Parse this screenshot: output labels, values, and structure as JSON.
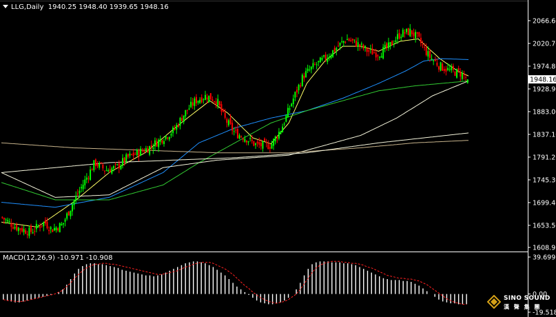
{
  "header": {
    "symbol": "LLG,Daily",
    "ohlc": "1940.25 1948.40 1939.65 1948.16"
  },
  "price_axis": {
    "ticks": [
      "2066.60",
      "2020.70",
      "1974.80",
      "1928.90",
      "1883.00",
      "1837.10",
      "1791.20",
      "1745.30",
      "1699.40",
      "1653.50",
      "1608.95"
    ],
    "current": "1948.16"
  },
  "macd": {
    "label": "MACD(12,26,9) -10.971 -10.908",
    "axis_top": "39.699",
    "axis_zero": "0.00",
    "axis_bottom": "-19.518"
  },
  "logo": {
    "name": "SINO SOUND",
    "sub": "漢 聲 集 團"
  },
  "colors": {
    "background": "#000000",
    "bull_candle": "#00ff00",
    "bear_candle": "#ff0000",
    "ma_fast": "#ffff66",
    "ma_mid": "#1e90ff",
    "ma_slow_green": "#32cd32",
    "ma_long_white": "#f5f5dc",
    "ma_longest_tan": "#c8b48c",
    "macd_hist": "#ffffff",
    "macd_signal": "#ff2020",
    "current_price_box": "#ffffff"
  },
  "chart_data": [
    {
      "type": "candlestick",
      "title": "LLG,Daily",
      "symbol": "LLG",
      "timeframe": "Daily",
      "last_bar": {
        "open": 1940.25,
        "high": 1948.4,
        "low": 1939.65,
        "close": 1948.16
      },
      "ylim": [
        1608.95,
        2080
      ],
      "yticks": [
        2066.6,
        2020.7,
        1974.8,
        1928.9,
        1883.0,
        1837.1,
        1791.2,
        1745.3,
        1699.4,
        1653.5,
        1608.95
      ],
      "current_price": 1948.16,
      "grid": false,
      "close_path": [
        [
          0,
          1670
        ],
        [
          8,
          1650
        ],
        [
          16,
          1640
        ],
        [
          24,
          1660
        ],
        [
          28,
          1645
        ],
        [
          34,
          1655
        ],
        [
          40,
          1700
        ],
        [
          46,
          1740
        ],
        [
          52,
          1780
        ],
        [
          58,
          1765
        ],
        [
          64,
          1770
        ],
        [
          70,
          1790
        ],
        [
          76,
          1800
        ],
        [
          82,
          1810
        ],
        [
          90,
          1830
        ],
        [
          96,
          1845
        ],
        [
          102,
          1880
        ],
        [
          108,
          1905
        ],
        [
          114,
          1915
        ],
        [
          120,
          1905
        ],
        [
          124,
          1870
        ],
        [
          130,
          1840
        ],
        [
          136,
          1830
        ],
        [
          142,
          1815
        ],
        [
          150,
          1815
        ],
        [
          156,
          1850
        ],
        [
          162,
          1905
        ],
        [
          168,
          1955
        ],
        [
          174,
          1975
        ],
        [
          180,
          1990
        ],
        [
          186,
          2010
        ],
        [
          192,
          2030
        ],
        [
          198,
          2020
        ],
        [
          204,
          2005
        ],
        [
          210,
          2000
        ],
        [
          216,
          2015
        ],
        [
          222,
          2040
        ],
        [
          228,
          2045
        ],
        [
          232,
          2030
        ],
        [
          238,
          1995
        ],
        [
          244,
          1975
        ],
        [
          250,
          1965
        ],
        [
          256,
          1960
        ],
        [
          260,
          1948.16
        ]
      ],
      "x_range": [
        0,
        260
      ],
      "moving_averages": [
        {
          "color": "#ffff66",
          "points": [
            [
              0,
              1660
            ],
            [
              20,
              1650
            ],
            [
              40,
              1700
            ],
            [
              60,
              1760
            ],
            [
              80,
              1800
            ],
            [
              100,
              1860
            ],
            [
              116,
              1905
            ],
            [
              126,
              1880
            ],
            [
              140,
              1830
            ],
            [
              150,
              1818
            ],
            [
              160,
              1860
            ],
            [
              170,
              1940
            ],
            [
              180,
              1985
            ],
            [
              190,
              2015
            ],
            [
              200,
              2015
            ],
            [
              210,
              2005
            ],
            [
              222,
              2025
            ],
            [
              232,
              2030
            ],
            [
              244,
              1990
            ],
            [
              254,
              1965
            ],
            [
              260,
              1955
            ]
          ]
        },
        {
          "color": "#1e90ff",
          "points": [
            [
              0,
              1700
            ],
            [
              30,
              1690
            ],
            [
              60,
              1710
            ],
            [
              90,
              1760
            ],
            [
              110,
              1820
            ],
            [
              130,
              1850
            ],
            [
              150,
              1870
            ],
            [
              170,
              1885
            ],
            [
              190,
              1910
            ],
            [
              210,
              1940
            ],
            [
              225,
              1965
            ],
            [
              235,
              1985
            ],
            [
              245,
              1990
            ],
            [
              260,
              1988
            ]
          ]
        },
        {
          "color": "#32cd32",
          "points": [
            [
              0,
              1740
            ],
            [
              30,
              1705
            ],
            [
              60,
              1705
            ],
            [
              90,
              1735
            ],
            [
              110,
              1780
            ],
            [
              130,
              1820
            ],
            [
              150,
              1860
            ],
            [
              170,
              1885
            ],
            [
              190,
              1905
            ],
            [
              210,
              1925
            ],
            [
              230,
              1935
            ],
            [
              245,
              1940
            ],
            [
              260,
              1945
            ]
          ]
        },
        {
          "color": "#f5f5dc",
          "points": [
            [
              0,
              1760
            ],
            [
              30,
              1710
            ],
            [
              60,
              1715
            ],
            [
              90,
              1770
            ],
            [
              120,
              1785
            ],
            [
              140,
              1790
            ],
            [
              160,
              1795
            ],
            [
              180,
              1815
            ],
            [
              200,
              1835
            ],
            [
              220,
              1870
            ],
            [
              240,
              1915
            ],
            [
              260,
              1945
            ]
          ]
        },
        {
          "color": "#c8b48c",
          "points": [
            [
              0,
              1820
            ],
            [
              40,
              1810
            ],
            [
              80,
              1805
            ],
            [
              120,
              1800
            ],
            [
              160,
              1800
            ],
            [
              200,
              1810
            ],
            [
              230,
              1820
            ],
            [
              260,
              1825
            ]
          ]
        }
      ],
      "long_white_tail": [
        [
          0,
          1760
        ],
        [
          60,
          1780
        ],
        [
          130,
          1790
        ],
        [
          170,
          1800
        ],
        [
          210,
          1820
        ],
        [
          260,
          1840
        ]
      ]
    },
    {
      "type": "bar",
      "title": "MACD(12,26,9)",
      "macd_value": -10.971,
      "signal_value": -10.908,
      "ylim": [
        -19.518,
        39.699
      ],
      "yticks": [
        39.699,
        0.0,
        -19.518
      ],
      "histogram": [
        -6,
        -7,
        -8,
        -9,
        -9,
        -8,
        -7,
        -6,
        -5,
        -4,
        -3,
        -2,
        -1,
        0,
        2,
        5,
        10,
        16,
        22,
        27,
        30,
        32,
        33,
        33,
        32,
        32,
        31,
        30,
        29,
        28,
        26,
        25,
        24,
        23,
        22,
        21,
        20,
        20,
        19,
        20,
        21,
        23,
        25,
        27,
        29,
        31,
        33,
        34,
        35,
        35,
        34,
        33,
        31,
        29,
        26,
        23,
        20,
        16,
        12,
        8,
        5,
        2,
        -1,
        -4,
        -7,
        -9,
        -10,
        -11,
        -11,
        -10,
        -9,
        -7,
        -4,
        0,
        5,
        12,
        20,
        27,
        32,
        34,
        35,
        35,
        35,
        34,
        34,
        34,
        33,
        33,
        32,
        31,
        29,
        27,
        25,
        23,
        21,
        19,
        17,
        16,
        15,
        15,
        15,
        14,
        14,
        13,
        11,
        9,
        6,
        3,
        0,
        -3,
        -6,
        -8,
        -9,
        -10,
        -10,
        -11,
        -11,
        -11
      ],
      "signal": [
        -6,
        -7,
        -7,
        -8,
        -8,
        -8,
        -7,
        -6,
        -5,
        -4,
        -3,
        -2,
        -1,
        0,
        2,
        4,
        8,
        12,
        17,
        21,
        25,
        28,
        30,
        32,
        32,
        33,
        33,
        32,
        32,
        31,
        30,
        29,
        28,
        27,
        26,
        25,
        24,
        23,
        22,
        21,
        21,
        22,
        23,
        24,
        25,
        27,
        29,
        30,
        32,
        33,
        34,
        34,
        34,
        33,
        31,
        29,
        27,
        24,
        21,
        17,
        13,
        9,
        6,
        2,
        -1,
        -4,
        -6,
        -8,
        -9,
        -10,
        -9,
        -8,
        -6,
        -3,
        0,
        5,
        11,
        17,
        23,
        28,
        31,
        33,
        34,
        35,
        35,
        35,
        34,
        34,
        33,
        33,
        32,
        31,
        29,
        28,
        26,
        24,
        22,
        20,
        19,
        18,
        17,
        17,
        16,
        16,
        15,
        14,
        12,
        10,
        7,
        4,
        1,
        -2,
        -5,
        -7,
        -9,
        -10,
        -11,
        -11
      ]
    }
  ]
}
